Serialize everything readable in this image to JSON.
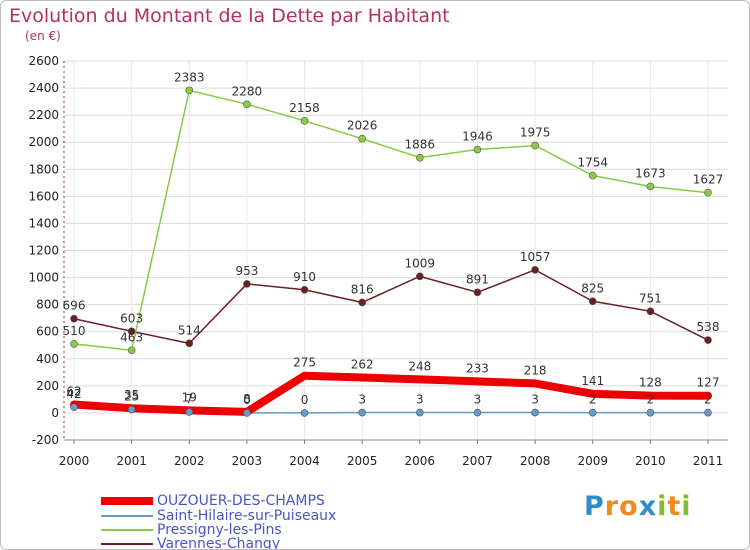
{
  "header": {
    "title": "Evolution du Montant de la Dette par Habitant",
    "subtitle": "(en €)"
  },
  "brand": {
    "logo_letters": [
      "P",
      "r",
      "o",
      "x",
      "i",
      "t",
      "i"
    ],
    "logo_colors": [
      "#2f8ec9",
      "#f08a1c",
      "#f08a1c",
      "#2f8ec9",
      "#7fbf2a",
      "#f08a1c",
      "#7fbf2a"
    ]
  },
  "chart_data": {
    "type": "line",
    "title": "Evolution du Montant de la Dette par Habitant",
    "subtitle": "(en €)",
    "xlabel": "",
    "ylabel": "",
    "x": [
      "2000",
      "2001",
      "2002",
      "2003",
      "2004",
      "2005",
      "2006",
      "2007",
      "2008",
      "2009",
      "2010",
      "2011"
    ],
    "ylim": [
      -200,
      2600
    ],
    "yticks": [
      -200,
      0,
      200,
      400,
      600,
      800,
      1000,
      1200,
      1400,
      1600,
      1800,
      2000,
      2200,
      2400,
      2600
    ],
    "grid": true,
    "legend_position": "bottom-left",
    "series": [
      {
        "name": "Varennes-Changy",
        "color": "#6b1f22",
        "width": 1.5,
        "values": [
          696,
          603,
          514,
          953,
          910,
          816,
          1009,
          891,
          1057,
          825,
          751,
          538
        ],
        "labels": [
          "696",
          "603",
          "514",
          "953",
          "910",
          "816",
          "1009",
          "891",
          "1057",
          "825",
          "751",
          "538"
        ]
      },
      {
        "name": "Pressigny-les-Pins",
        "color": "#88cc44",
        "width": 1.5,
        "values": [
          510,
          463,
          2383,
          2280,
          2158,
          2026,
          1886,
          1946,
          1975,
          1754,
          1673,
          1627
        ],
        "labels": [
          "510",
          "463",
          "2383",
          "2280",
          "2158",
          "2026",
          "1886",
          "1946",
          "1975",
          "1754",
          "1673",
          "1627"
        ]
      },
      {
        "name": "Saint-Hilaire-sur-Puiseaux",
        "color": "#6699cc",
        "width": 1.5,
        "values": [
          42,
          25,
          7,
          0,
          0,
          3,
          3,
          3,
          3,
          2,
          2,
          2
        ],
        "labels": [
          "42",
          "25",
          "7",
          "0",
          "0",
          "3",
          "3",
          "3",
          "3",
          "2",
          "2",
          "2"
        ]
      },
      {
        "name": "OUZOUER-DES-CHAMPS",
        "color": "#ee0000",
        "width": 8,
        "values": [
          62,
          35,
          19,
          8,
          275,
          262,
          248,
          233,
          218,
          141,
          128,
          127
        ],
        "labels": [
          "62",
          "35",
          "19",
          "8",
          "275",
          "262",
          "248",
          "233",
          "218",
          "141",
          "128",
          "127"
        ]
      }
    ],
    "legend_order": [
      "OUZOUER-DES-CHAMPS",
      "Saint-Hilaire-sur-Puiseaux",
      "Pressigny-les-Pins",
      "Varennes-Changy"
    ]
  }
}
